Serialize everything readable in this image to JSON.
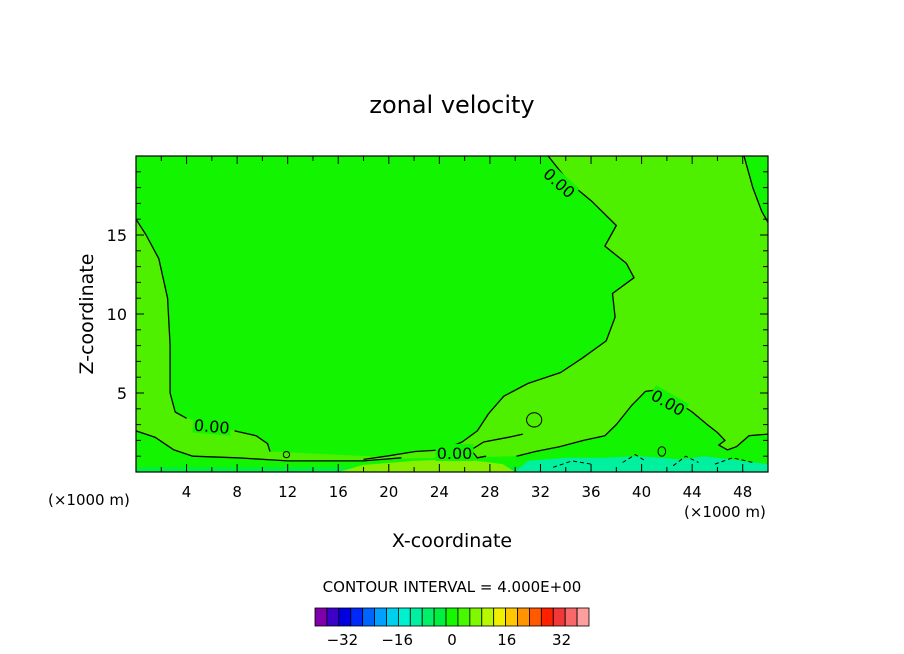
{
  "chart_data": {
    "type": "contour",
    "title": "zonal velocity",
    "xlabel": "X-coordinate",
    "ylabel": "Z-coordinate",
    "x_unit_left": "(×1000 m)",
    "x_unit_right": "(×1000 m)",
    "xlim": [
      0,
      50
    ],
    "ylim": [
      0,
      20
    ],
    "x_ticks": [
      4,
      8,
      12,
      16,
      20,
      24,
      28,
      32,
      36,
      40,
      44,
      48
    ],
    "y_ticks": [
      5,
      10,
      15
    ],
    "contour_interval_label": "CONTOUR INTERVAL = 4.000E+00",
    "contour_labels": [
      {
        "text": "0.00",
        "x": 33.5,
        "y": 18.3,
        "angle": 42
      },
      {
        "text": "0.00",
        "x": 6.0,
        "y": 2.9,
        "angle": 5
      },
      {
        "text": "0.00",
        "x": 25.2,
        "y": 1.2,
        "angle": 0
      },
      {
        "text": "0.00",
        "x": 42.1,
        "y": 4.4,
        "angle": 30
      }
    ],
    "zero_contours": [
      {
        "name": "left",
        "points": [
          [
            0,
            16
          ],
          [
            0.8,
            15
          ],
          [
            1.8,
            13.5
          ],
          [
            2.5,
            11
          ],
          [
            2.7,
            8
          ],
          [
            2.7,
            5
          ],
          [
            3.1,
            3.8
          ],
          [
            4.0,
            3.4
          ]
        ]
      },
      {
        "name": "left-tail",
        "points": [
          [
            7.8,
            2.6
          ],
          [
            9.5,
            2.3
          ],
          [
            10.4,
            1.8
          ],
          [
            10.6,
            1.3
          ]
        ]
      },
      {
        "name": "bottom-left",
        "points": [
          [
            0,
            2.6
          ],
          [
            1.5,
            2.2
          ],
          [
            3.0,
            1.4
          ],
          [
            4.5,
            1.0
          ],
          [
            8.0,
            0.9
          ],
          [
            12,
            0.7
          ],
          [
            18,
            0.7
          ],
          [
            21,
            0.9
          ]
        ]
      },
      {
        "name": "bottom-mid",
        "points": [
          [
            27.7,
            1.0
          ],
          [
            27.0,
            0.9
          ],
          [
            26.5,
            1.4
          ],
          [
            27.5,
            1.9
          ],
          [
            29.5,
            2.2
          ],
          [
            30.6,
            2.4
          ]
        ]
      },
      {
        "name": "main",
        "points": [
          [
            32.6,
            20
          ],
          [
            34.3,
            18.3
          ],
          [
            36.1,
            17.1
          ],
          [
            38.0,
            15.6
          ],
          [
            37.1,
            14.3
          ],
          [
            38.8,
            13.2
          ],
          [
            39.4,
            12.3
          ],
          [
            37.7,
            11.3
          ],
          [
            37.9,
            9.8
          ],
          [
            37.2,
            8.3
          ],
          [
            35.3,
            7.2
          ],
          [
            33.6,
            6.3
          ],
          [
            31.0,
            5.6
          ],
          [
            29.1,
            4.8
          ],
          [
            27.9,
            3.7
          ],
          [
            27.0,
            2.6
          ],
          [
            25.8,
            1.9
          ],
          [
            24.3,
            1.4
          ],
          [
            22.1,
            1.3
          ],
          [
            19.8,
            1.0
          ],
          [
            18.0,
            0.8
          ]
        ]
      },
      {
        "name": "right-bump",
        "points": [
          [
            41.3,
            5.2
          ],
          [
            40.3,
            5.1
          ],
          [
            39.2,
            4.2
          ],
          [
            38.0,
            3.0
          ],
          [
            37.1,
            2.3
          ],
          [
            35.4,
            2.0
          ],
          [
            33.5,
            1.6
          ],
          [
            31.6,
            1.3
          ],
          [
            30.1,
            1.0
          ]
        ]
      },
      {
        "name": "right",
        "points": [
          [
            42.7,
            4.5
          ],
          [
            44.0,
            3.8
          ],
          [
            45.2,
            3.0
          ],
          [
            46.0,
            2.5
          ],
          [
            46.6,
            2.0
          ],
          [
            46.1,
            1.7
          ],
          [
            46.8,
            1.4
          ],
          [
            47.5,
            1.6
          ],
          [
            48.5,
            2.3
          ],
          [
            50,
            2.4
          ]
        ]
      },
      {
        "name": "top-right",
        "points": [
          [
            48.1,
            20
          ],
          [
            48.8,
            18
          ],
          [
            49.5,
            16.5
          ],
          [
            50,
            15.8
          ]
        ]
      }
    ],
    "small_features": [
      {
        "x": 31.5,
        "y": 3.3,
        "rx": 0.6,
        "ry": 0.45
      },
      {
        "x": 11.9,
        "y": 1.1,
        "rx": 0.25,
        "ry": 0.2
      },
      {
        "x": 41.6,
        "y": 1.3,
        "rx": 0.3,
        "ry": 0.3
      }
    ],
    "regions": [
      {
        "name": "near-zero",
        "value": 0
      },
      {
        "name": "weak-positive",
        "value": 4
      },
      {
        "name": "positive-bottom",
        "value": 8
      },
      {
        "name": "negative-bottom-right",
        "value": -4
      }
    ],
    "colorbar": {
      "tick_labels": [
        "-32",
        "-16",
        "0",
        "16",
        "32"
      ],
      "tick_positions": [
        -32,
        -16,
        0,
        16,
        32
      ],
      "min": -40,
      "max": 40,
      "interval": 4,
      "colors": [
        "#7f00a8",
        "#3c00c8",
        "#0000e0",
        "#0028f8",
        "#0064ff",
        "#00a0ff",
        "#00d0f0",
        "#00f0d0",
        "#00f0a0",
        "#00f068",
        "#00f040",
        "#16f800",
        "#46f800",
        "#80f800",
        "#b8f800",
        "#f0f000",
        "#ffc800",
        "#ff9400",
        "#ff5a00",
        "#ff2000",
        "#f03838",
        "#f86868",
        "#ff9e9e"
      ]
    },
    "region_colors": {
      "near_zero": "#12f400",
      "weak_positive": "#4ef000",
      "positive": "#86f000",
      "negative": "#00f0a0",
      "neutral_band": "#00f040"
    }
  }
}
